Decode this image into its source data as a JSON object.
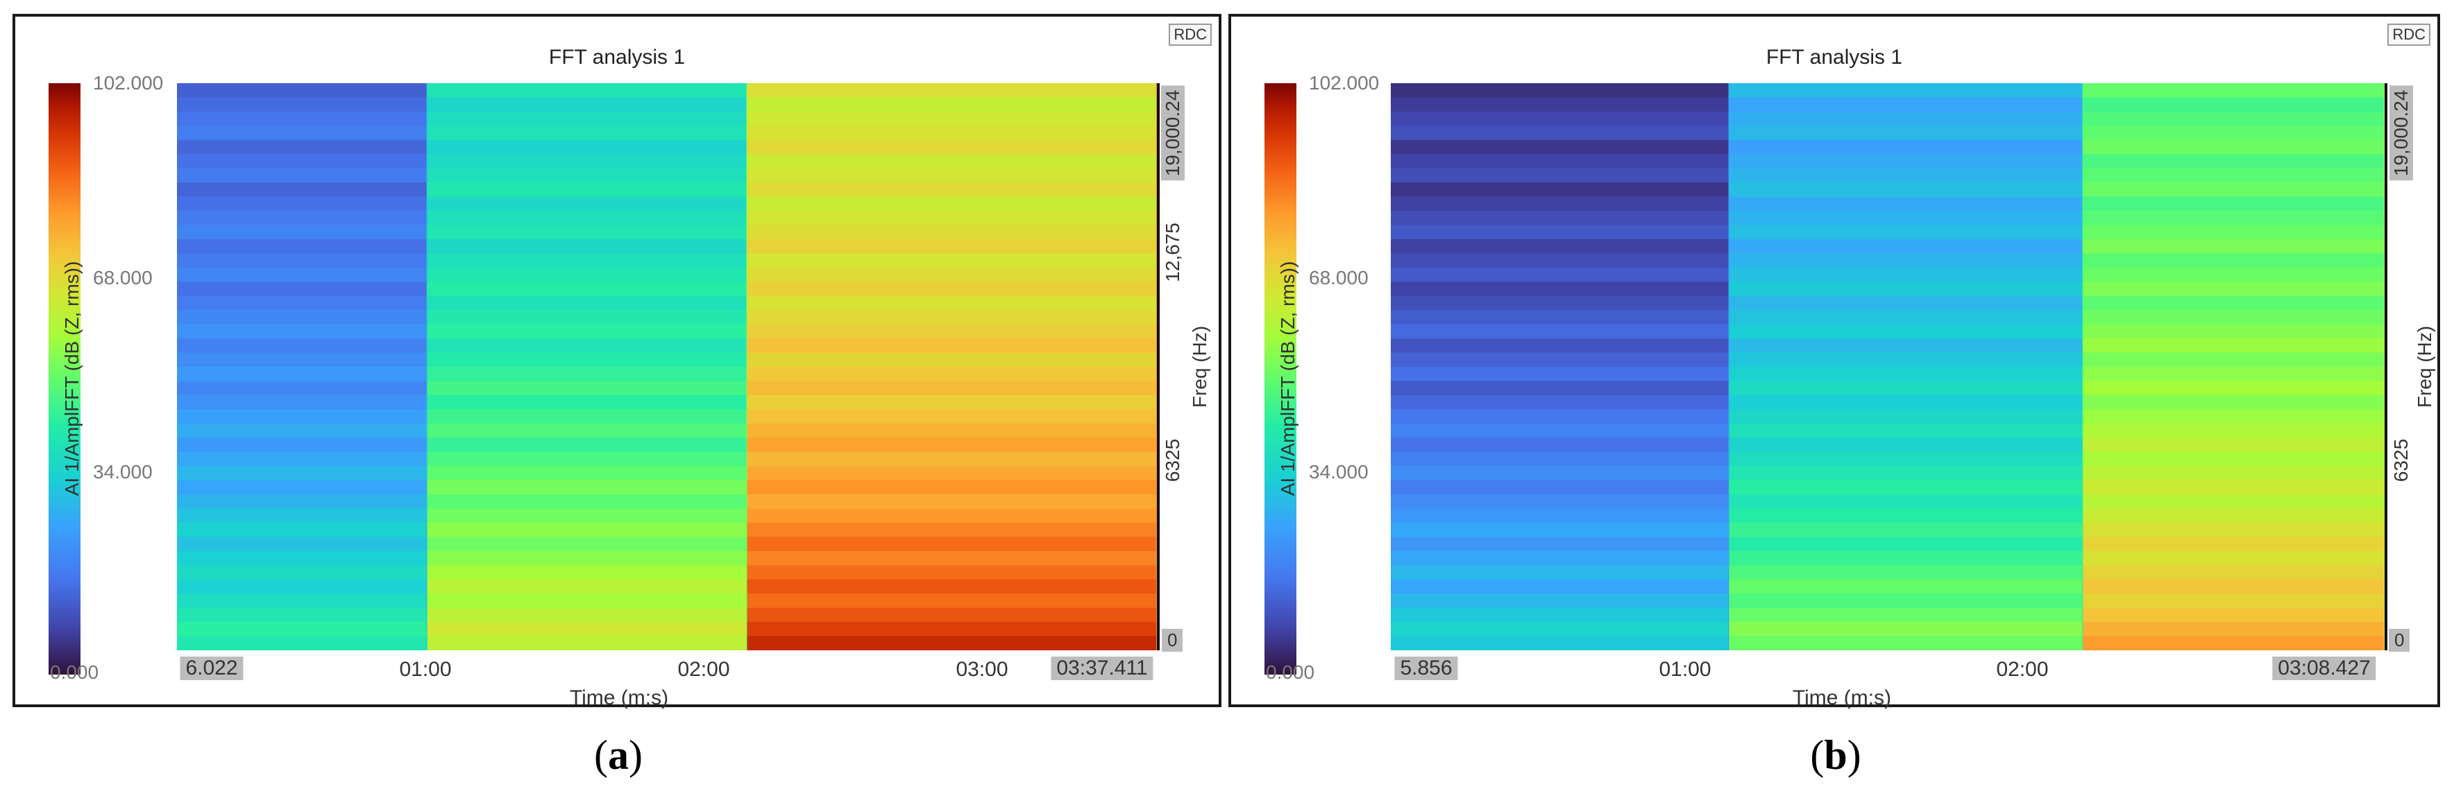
{
  "chart_data": [
    {
      "type": "heatmap",
      "id": "a",
      "title": "FFT analysis 1",
      "badge": "RDC",
      "xlabel": "Time (m:s)",
      "ylabel": "Freq (Hz)",
      "colorbar_label": "AI 1/AmplFFT (dB (Z, rms))",
      "colorbar_ticks": [
        "102.000",
        "68.000",
        "34.000",
        "0.000"
      ],
      "colorbar_range": [
        0,
        102
      ],
      "x_start_label": "6.022",
      "x_end_label": "03:37.411",
      "x_ticks": [
        "01:00",
        "02:00",
        "03:00"
      ],
      "x_tick_values_s": [
        60,
        120,
        180
      ],
      "x_range_s": [
        6.022,
        217.411
      ],
      "y_tick_labels": [
        "0",
        "6325",
        "12,675",
        "19,000.24"
      ],
      "y_tick_values_hz": [
        0,
        6325,
        12675,
        19000.24
      ],
      "y_range_hz": [
        0,
        19000.24
      ],
      "segments": [
        {
          "t_start": 6.022,
          "t_end": 60,
          "level_db": 16
        },
        {
          "t_start": 60,
          "t_end": 129,
          "level_db": 38
        },
        {
          "t_start": 129,
          "t_end": 217.411,
          "level_db": 66
        }
      ],
      "caption_label": "a"
    },
    {
      "type": "heatmap",
      "id": "b",
      "title": "FFT analysis 1",
      "badge": "RDC",
      "xlabel": "Time (m:s)",
      "ylabel": "Freq (Hz)",
      "colorbar_label": "AI 1/AmplFFT (dB (Z, rms))",
      "colorbar_ticks": [
        "102.000",
        "68.000",
        "34.000",
        "0.000"
      ],
      "colorbar_range": [
        0,
        102
      ],
      "x_start_label": "5.856",
      "x_end_label": "03:08.427",
      "x_ticks": [
        "01:00",
        "02:00"
      ],
      "x_tick_values_s": [
        60,
        120
      ],
      "x_range_s": [
        5.856,
        188.427
      ],
      "y_tick_labels": [
        "0",
        "6325",
        "19,000.24"
      ],
      "y_tick_values_hz": [
        0,
        6325,
        19000.24
      ],
      "y_range_hz": [
        0,
        19000.24
      ],
      "segments": [
        {
          "t_start": 5.856,
          "t_end": 68,
          "level_db": 8
        },
        {
          "t_start": 68,
          "t_end": 133,
          "level_db": 28
        },
        {
          "t_start": 133,
          "t_end": 188.427,
          "level_db": 50
        }
      ],
      "caption_label": "b"
    }
  ]
}
